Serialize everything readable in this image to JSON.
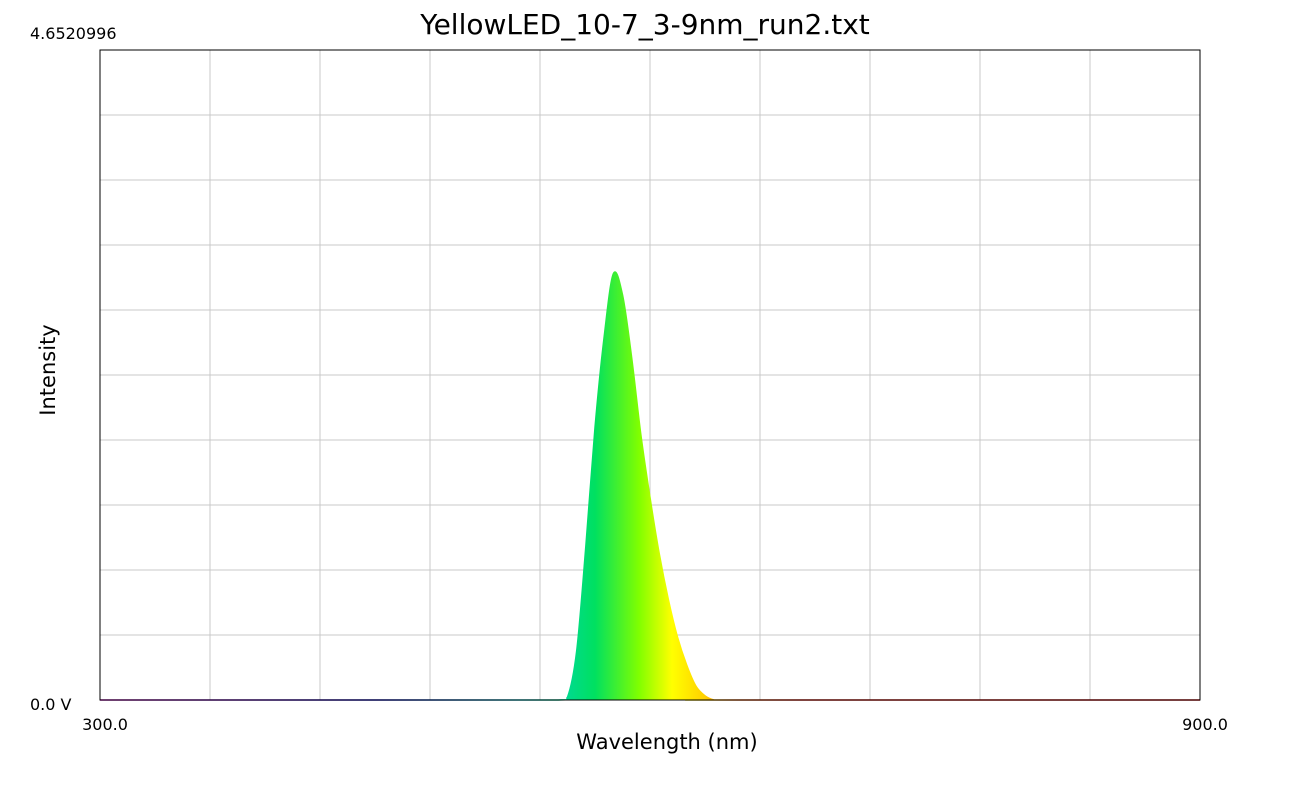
{
  "chart_data": {
    "type": "area",
    "title": "YellowLED_10-7_3-9nm_run2.txt",
    "xlabel": "Wavelength (nm)",
    "ylabel": "Intensity",
    "xlim": [
      300.0,
      900.0
    ],
    "ylim": [
      0.0,
      4.6520996
    ],
    "x_tick_labels": [
      "300.0",
      "900.0"
    ],
    "y_max_label": "4.6520996",
    "y_min_label": "0.0 V",
    "grid": true,
    "series": [
      {
        "x": [
          300,
          500,
          550,
          555,
          560,
          565,
          570,
          575,
          580,
          585,
          590,
          595,
          600,
          605,
          610,
          615,
          620,
          625,
          630,
          635,
          640,
          900
        ],
        "values": [
          0.0,
          0.0,
          0.0,
          0.02,
          0.35,
          1.1,
          1.95,
          2.6,
          3.05,
          2.9,
          2.45,
          1.9,
          1.45,
          1.05,
          0.72,
          0.45,
          0.25,
          0.1,
          0.03,
          0.0,
          0.0,
          0.0
        ]
      }
    ]
  }
}
